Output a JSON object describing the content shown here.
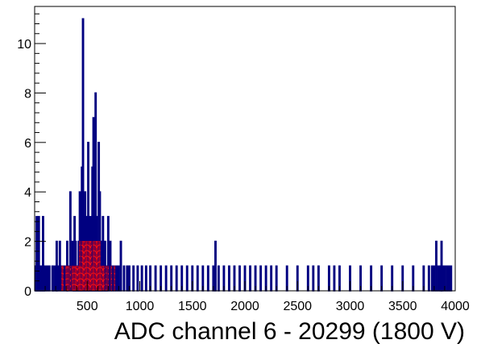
{
  "chart_data": {
    "type": "bar",
    "title": "",
    "xlabel": "ADC channel 6 - 20299 (1800 V)",
    "ylabel": "",
    "xlim": [
      0,
      4000
    ],
    "ylim": [
      0,
      11.5
    ],
    "grid": false,
    "legend": "none",
    "x_ticks": [
      "500",
      "1000",
      "1500",
      "2000",
      "2500",
      "3000",
      "3500",
      "4000"
    ],
    "y_ticks": [
      "0",
      "2",
      "4",
      "6",
      "8",
      "10"
    ],
    "series": [
      {
        "color": "#000080",
        "bin_width": 10,
        "x": [
          10,
          20,
          30,
          40,
          50,
          60,
          70,
          80,
          90,
          100,
          120,
          140,
          170,
          180,
          200,
          210,
          220,
          240,
          260,
          280,
          300,
          310,
          320,
          340,
          360,
          370,
          380,
          390,
          400,
          410,
          420,
          430,
          440,
          450,
          460,
          470,
          480,
          490,
          500,
          510,
          520,
          530,
          540,
          550,
          560,
          570,
          580,
          590,
          600,
          610,
          620,
          630,
          640,
          650,
          660,
          670,
          680,
          690,
          700,
          720,
          740,
          760,
          780,
          800,
          820,
          850,
          880,
          900,
          940,
          980,
          1020,
          1060,
          1100,
          1150,
          1200,
          1250,
          1300,
          1350,
          1400,
          1450,
          1500,
          1550,
          1600,
          1650,
          1700,
          1720,
          1750,
          1800,
          1850,
          1900,
          1950,
          2000,
          2050,
          2100,
          2150,
          2200,
          2250,
          2300,
          2400,
          2500,
          2600,
          2650,
          2700,
          2800,
          2850,
          2900,
          3000,
          3100,
          3200,
          3300,
          3400,
          3500,
          3600,
          3700,
          3750,
          3780,
          3800,
          3820,
          3840,
          3860,
          3870,
          3880,
          3900,
          3920,
          3940,
          3960
        ],
        "values": [
          1,
          3,
          1,
          3,
          1,
          1,
          1,
          3,
          1,
          1,
          1,
          1,
          1,
          1,
          1,
          2,
          1,
          2,
          1,
          1,
          1,
          2,
          1,
          4,
          2,
          1,
          3,
          2,
          1,
          1,
          2,
          4,
          2,
          5,
          11,
          3,
          4,
          1,
          3,
          6,
          2,
          3,
          2,
          5,
          7,
          4,
          8,
          3,
          2,
          6,
          4,
          1,
          2,
          3,
          1,
          2,
          1,
          1,
          3,
          2,
          1,
          1,
          1,
          1,
          2,
          1,
          1,
          1,
          1,
          1,
          1,
          1,
          1,
          1,
          1,
          1,
          1,
          1,
          1,
          1,
          1,
          1,
          1,
          1,
          1,
          2,
          1,
          1,
          1,
          1,
          1,
          1,
          1,
          1,
          1,
          1,
          1,
          1,
          1,
          1,
          1,
          1,
          1,
          1,
          1,
          1,
          1,
          1,
          1,
          1,
          1,
          1,
          1,
          1,
          1,
          1,
          1,
          2,
          1,
          1,
          2,
          1,
          1,
          1,
          1,
          1
        ]
      },
      {
        "color": "#ff0000",
        "fill": "hatched",
        "bin_width": 10,
        "x": [
          260,
          270,
          300,
          310,
          320,
          340,
          360,
          370,
          380,
          390,
          400,
          410,
          420,
          430,
          440,
          450,
          460,
          470,
          480,
          490,
          500,
          510,
          520,
          530,
          540,
          550,
          560,
          570,
          580,
          590,
          600,
          610,
          620,
          630,
          640,
          650,
          660,
          680,
          700,
          730,
          760
        ],
        "values": [
          1,
          1,
          1,
          1,
          1,
          1,
          1,
          1,
          1,
          1,
          1,
          1,
          1,
          2,
          1,
          2,
          2,
          2,
          2,
          2,
          2,
          2,
          2,
          2,
          2,
          1,
          2,
          2,
          2,
          2,
          2,
          2,
          2,
          1,
          1,
          1,
          1,
          1,
          1,
          1,
          1
        ]
      }
    ]
  }
}
